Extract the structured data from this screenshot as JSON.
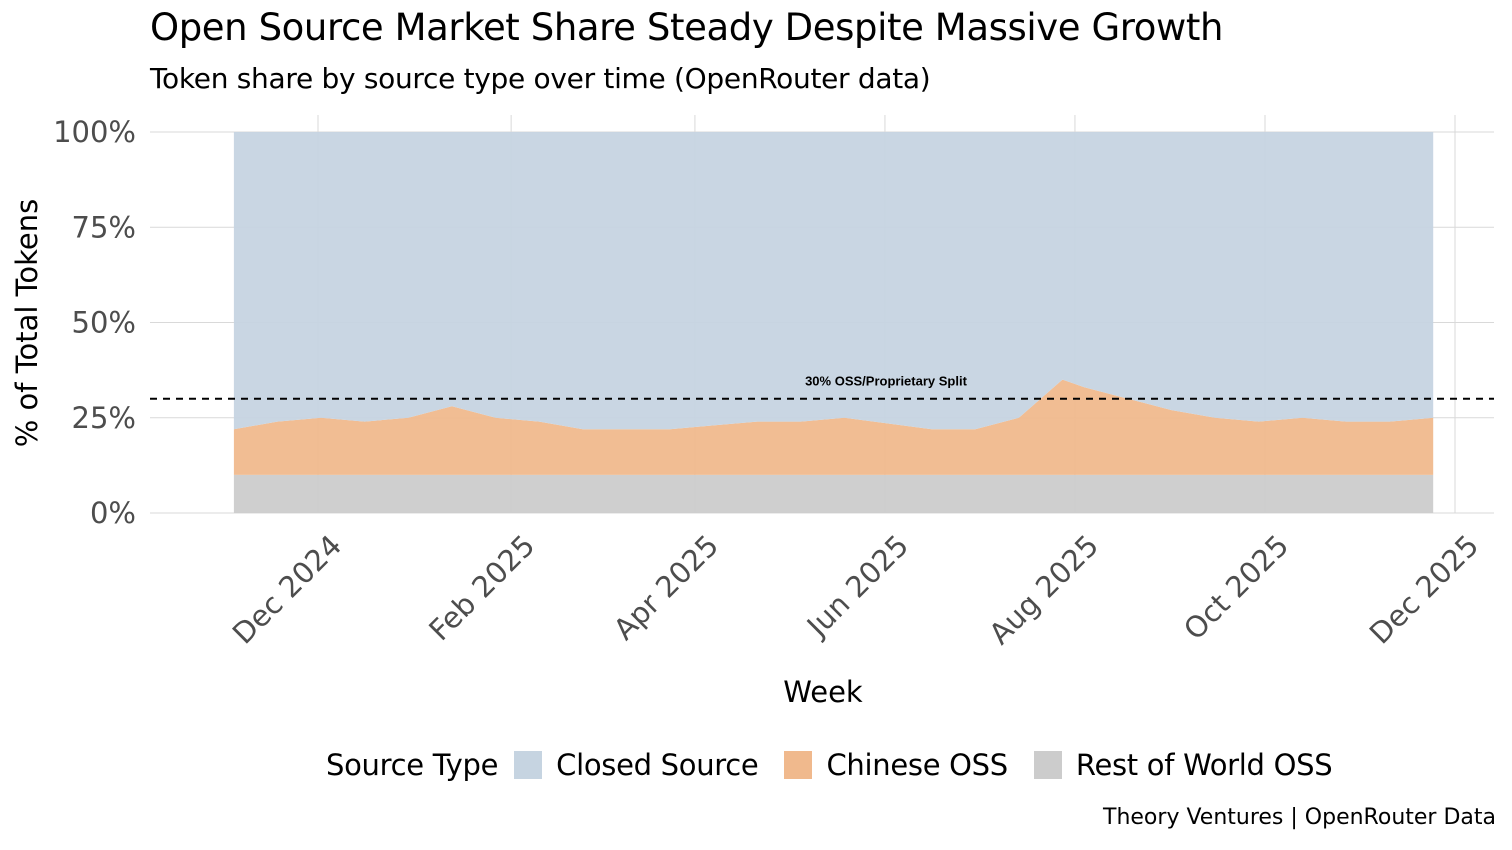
{
  "chart_data": {
    "type": "area",
    "stacked": true,
    "title": "Open Source Market Share Steady Despite Massive Growth",
    "subtitle": "Token share by source type over time (OpenRouter data)",
    "xlabel": "Week",
    "ylabel": "% of Total Tokens",
    "ylim": [
      0,
      100
    ],
    "yticks": [
      "0%",
      "25%",
      "50%",
      "75%",
      "100%"
    ],
    "ytick_values": [
      0,
      25,
      50,
      75,
      100
    ],
    "xticks": [
      "Dec 2024",
      "Feb 2025",
      "Apr 2025",
      "Jun 2025",
      "Aug 2025",
      "Oct 2025",
      "Dec 2025"
    ],
    "xtick_dates": [
      "2024-12-01",
      "2025-02-01",
      "2025-04-01",
      "2025-06-01",
      "2025-08-01",
      "2025-10-01",
      "2025-12-01"
    ],
    "xlim": [
      "2024-11-01",
      "2025-12-10"
    ],
    "grid": true,
    "legend_position": "bottom",
    "legend_title": "Source Type",
    "x": [
      "2024-11-04",
      "2024-11-18",
      "2024-12-02",
      "2024-12-16",
      "2024-12-30",
      "2025-01-13",
      "2025-01-27",
      "2025-02-10",
      "2025-02-24",
      "2025-03-10",
      "2025-03-24",
      "2025-04-07",
      "2025-04-21",
      "2025-05-05",
      "2025-05-19",
      "2025-06-02",
      "2025-06-16",
      "2025-06-30",
      "2025-07-14",
      "2025-07-28",
      "2025-08-04",
      "2025-08-18",
      "2025-09-01",
      "2025-09-15",
      "2025-09-29",
      "2025-10-13",
      "2025-10-27",
      "2025-11-10",
      "2025-11-24"
    ],
    "series": [
      {
        "name": "Closed Source",
        "color": "#c6d4e1",
        "values": [
          78,
          76,
          75,
          76,
          75,
          72,
          75,
          76,
          78,
          78,
          78,
          77,
          76,
          76,
          75,
          76.5,
          78,
          78,
          75,
          65,
          67,
          70,
          73,
          75,
          76,
          75,
          76,
          76,
          75
        ]
      },
      {
        "name": "Chinese OSS",
        "color": "#f0b98d",
        "values": [
          12,
          14,
          15,
          14,
          15,
          18,
          15,
          14,
          12,
          12,
          12,
          13,
          14,
          14,
          15,
          13.5,
          12,
          12,
          15,
          25,
          23,
          20,
          17,
          15,
          14,
          15,
          14,
          14,
          15
        ]
      },
      {
        "name": "Rest of World OSS",
        "color": "#cccccc",
        "values": [
          10,
          10,
          10,
          10,
          10,
          10,
          10,
          10,
          10,
          10,
          10,
          10,
          10,
          10,
          10,
          10,
          10,
          10,
          10,
          10,
          10,
          10,
          10,
          10,
          10,
          10,
          10,
          10,
          10
        ]
      }
    ],
    "reference_line": {
      "y": 30,
      "label": "30% OSS/Proprietary Split",
      "style": "dashed",
      "color": "#000000"
    }
  },
  "caption": "Theory Ventures | OpenRouter Data"
}
